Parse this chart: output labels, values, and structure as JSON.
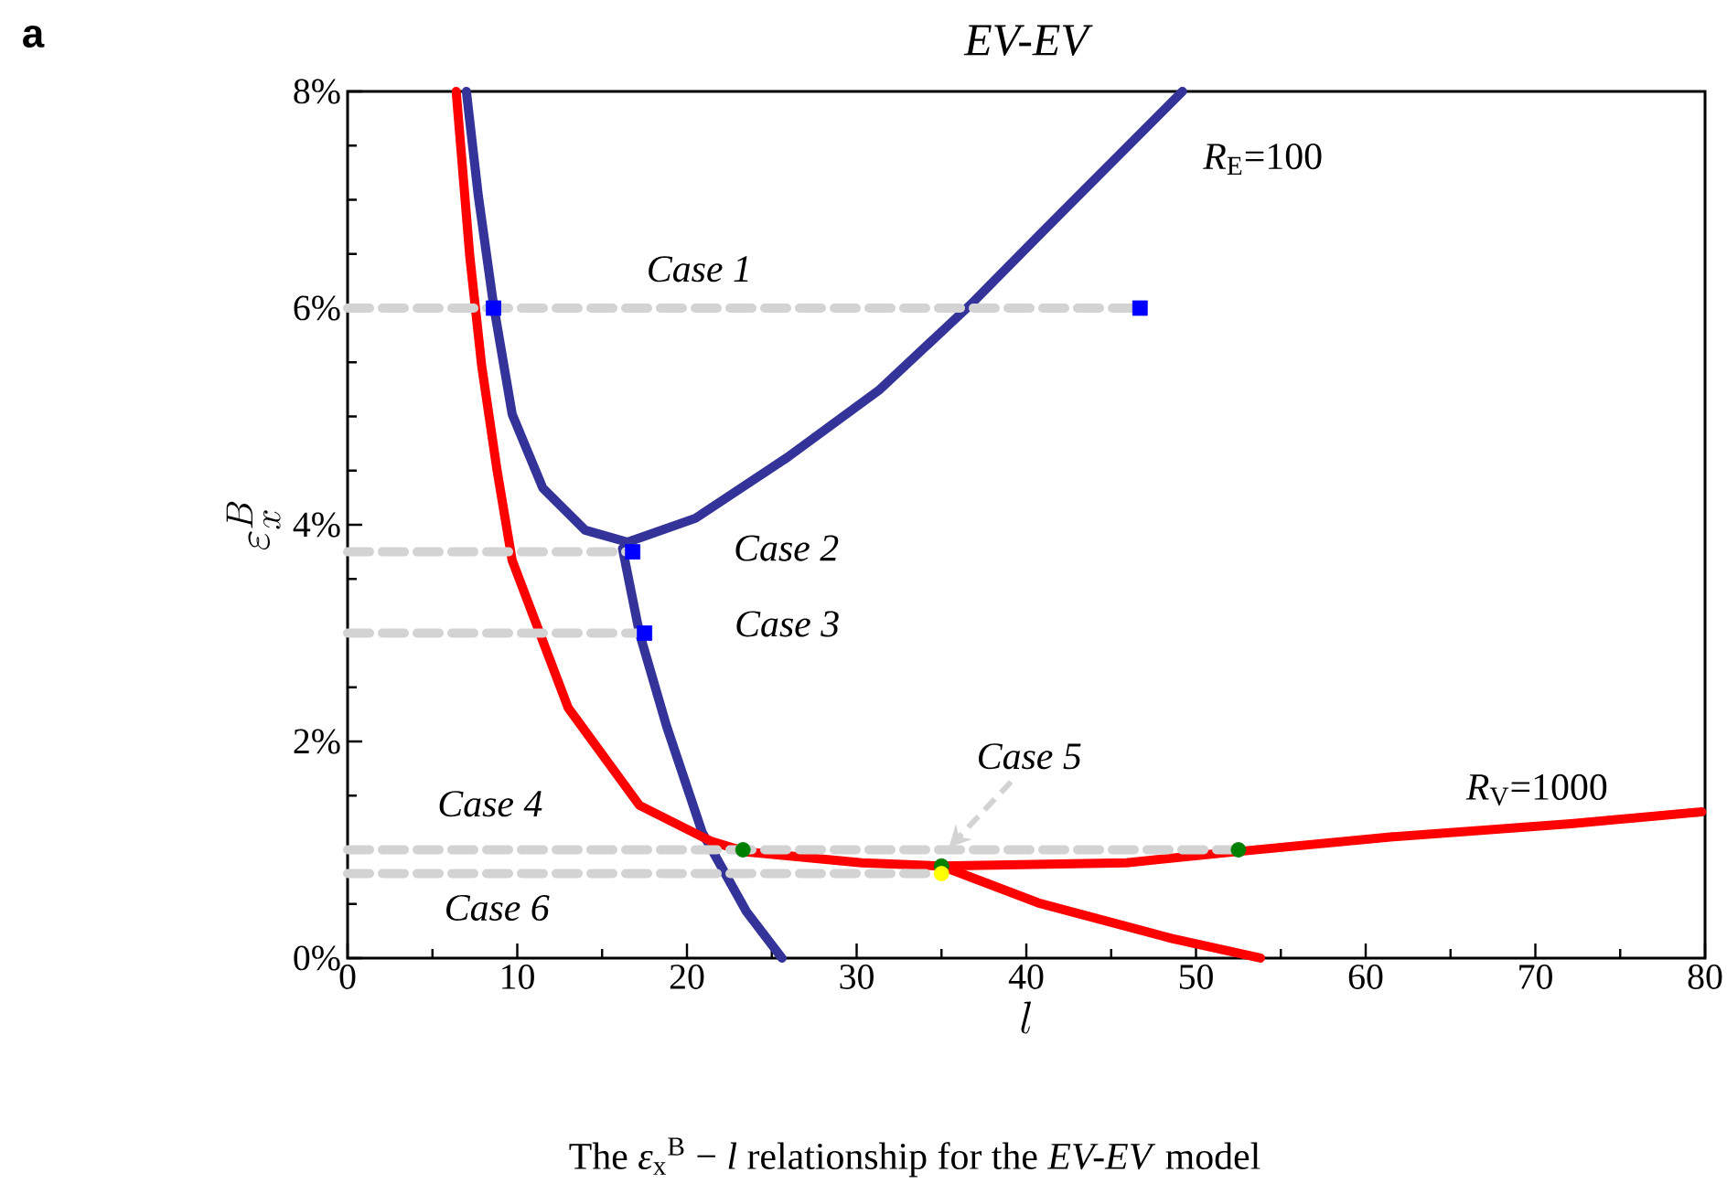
{
  "chart_data": {
    "type": "line",
    "title": "EV-EV",
    "xlabel": "l",
    "ylabel": "\\varepsilon_{x}^{B}",
    "xlim": [
      0,
      80
    ],
    "xticks": [
      0,
      10,
      20,
      30,
      40,
      50,
      60,
      70,
      80
    ],
    "ylim": [
      0,
      8
    ],
    "yticks": [
      {
        "value": 0,
        "label": "0%"
      },
      {
        "value": 2,
        "label": "2%"
      },
      {
        "value": 4,
        "label": "4%"
      },
      {
        "value": 6,
        "label": "6%"
      },
      {
        "value": 8,
        "label": "8%"
      }
    ],
    "series": [
      {
        "name": "*R*$_{E}$=100",
        "color": "#333399",
        "x": [
          7.0,
          7.7,
          8.6,
          9.7,
          11.5,
          14.0,
          16.5,
          20.5,
          25.9,
          31.3,
          36.7,
          42.0,
          49.2
        ],
        "values": [
          8.0,
          7.04,
          6.03,
          5.02,
          4.34,
          3.95,
          3.84,
          4.06,
          4.62,
          5.24,
          6.03,
          6.87,
          8.0
        ]
      },
      {
        "color": "#333399",
        "x": [
          16.2,
          17.2,
          18.8,
          20.9,
          23.5,
          25.6
        ],
        "values": [
          3.78,
          3.0,
          2.14,
          1.16,
          0.43,
          0
        ]
      },
      {
        "name": "*R*$_{V}$=1000",
        "color": "#ff0000",
        "x": [
          6.4,
          7.2,
          7.9,
          8.8,
          9.7,
          13.0,
          17.2,
          21.4,
          23.5,
          30.3,
          35.0,
          45.9,
          52.2,
          61.6,
          72.1,
          79.8
        ],
        "values": [
          8.0,
          6.48,
          5.47,
          4.51,
          3.67,
          2.31,
          1.41,
          1.08,
          0.98,
          0.88,
          0.85,
          0.88,
          0.98,
          1.12,
          1.24,
          1.35
        ]
      },
      {
        "color": "#ff0000",
        "x": [
          35.0,
          40.7,
          48.6,
          53.8
        ],
        "values": [
          0.85,
          0.51,
          0.18,
          0
        ]
      },
      {
        "color": "#d3d3d3",
        "type": "line",
        "line_style": "dashed",
        "x": [
          0,
          46.7
        ],
        "values": [
          6,
          6
        ]
      },
      {
        "color": "#d3d3d3",
        "type": "line",
        "line_style": "dashed",
        "x": [
          0,
          16.8
        ],
        "values": [
          3.75,
          3.75
        ]
      },
      {
        "color": "#d3d3d3",
        "type": "line",
        "line_style": "dashed",
        "x": [
          0,
          17.5
        ],
        "values": [
          3.0,
          3.0
        ]
      },
      {
        "color": "#d3d3d3",
        "type": "line",
        "line_style": "dashed",
        "x": [
          0,
          52.5
        ],
        "values": [
          1.0,
          1.0
        ]
      },
      {
        "color": "#d3d3d3",
        "type": "line",
        "line_style": "dashed",
        "x": [
          0,
          35.0
        ],
        "values": [
          0.78,
          0.78
        ]
      },
      {
        "color": "#0000ff",
        "type": "scatter",
        "marker": "square",
        "x": [
          8.6,
          46.7,
          16.8,
          17.5
        ],
        "values": [
          6,
          6,
          3.75,
          3.0
        ]
      },
      {
        "color": "#008000",
        "type": "scatter",
        "marker": "circle",
        "x": [
          23.3,
          52.5,
          35.0
        ],
        "values": [
          1.0,
          1.0,
          0.85
        ]
      },
      {
        "color": "#ffff00",
        "type": "scatter",
        "marker": "circle",
        "x": [
          35.0
        ],
        "values": [
          0.78
        ]
      }
    ],
    "annotations": [
      "Case 1",
      {
        "text": "Case 2",
        "x": 16.8,
        "y": 3.75
      },
      {
        "text": "Case 3",
        "x": 17.5,
        "y": 3.0
      },
      "Case 4",
      {
        "text": "Case 5",
        "x": 35.0,
        "y": 0.85
      },
      "Case 6",
      "a",
      "The *ε*$_{x}$$^{B}$ − *l* relationship for the *EV-EV* model"
    ]
  }
}
